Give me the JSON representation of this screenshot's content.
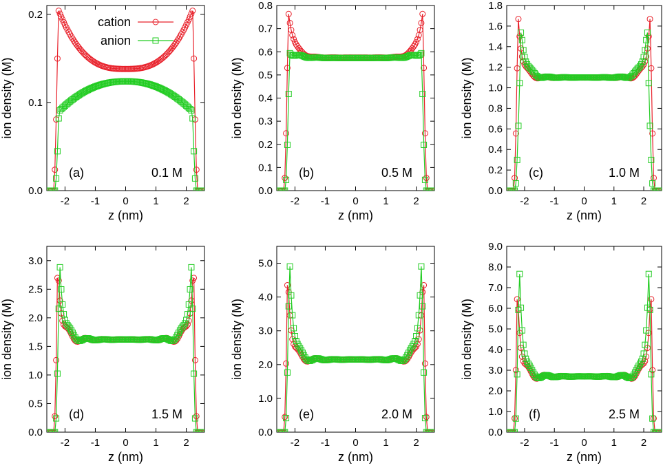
{
  "colors": {
    "cation": "#e8202a",
    "anion": "#22cc22",
    "axes": "#000000"
  },
  "legend": {
    "placement": "top-center",
    "entries": [
      {
        "name": "cation",
        "marker": "circle",
        "color": "#e8202a"
      },
      {
        "name": "anion",
        "marker": "square",
        "color": "#22cc22"
      }
    ]
  },
  "chart_data": [
    {
      "type": "line",
      "panel": "(a)",
      "annotation": "0.1 M",
      "xlabel": "z (nm)",
      "ylabel": "ion density (M)",
      "xlim": [
        -2.6,
        2.6
      ],
      "ylim": [
        0,
        0.21
      ],
      "xticks": [
        -2,
        -1,
        0,
        1,
        2
      ],
      "xtick_labels": [
        "-2",
        "-1",
        "0",
        "1",
        "2"
      ],
      "yticks": [
        0,
        0.1,
        0.2
      ],
      "ytick_labels": [
        "0.0",
        "0.1",
        "0.2"
      ],
      "series": [
        {
          "name": "cation",
          "profile": {
            "wall": 2.36,
            "bulk": 0.138,
            "peak": 0.205,
            "peak_at": 2.22,
            "decay": 0.55,
            "osc": 0
          }
        },
        {
          "name": "anion",
          "profile": {
            "wall": 2.32,
            "bulk": 0.124,
            "peak": 0.09,
            "peak_at": 2.2,
            "decay": 0.9,
            "osc": 0
          }
        }
      ]
    },
    {
      "type": "line",
      "panel": "(b)",
      "annotation": "0.5 M",
      "xlabel": "z (nm)",
      "ylabel": "ion density (M)",
      "xlim": [
        -2.6,
        2.6
      ],
      "ylim": [
        0,
        0.8
      ],
      "xticks": [
        -2,
        -1,
        0,
        1,
        2
      ],
      "xtick_labels": [
        "-2",
        "-1",
        "0",
        "1",
        "2"
      ],
      "yticks": [
        0,
        0.1,
        0.2,
        0.3,
        0.4,
        0.5,
        0.6,
        0.7,
        0.8
      ],
      "ytick_labels": [
        "0.0",
        "0.1",
        "0.2",
        "0.3",
        "0.4",
        "0.5",
        "0.6",
        "0.7",
        "0.8"
      ],
      "series": [
        {
          "name": "cation",
          "profile": {
            "wall": 2.36,
            "bulk": 0.575,
            "peak": 0.78,
            "peak_at": 2.22,
            "decay": 0.2,
            "osc": 0.01
          }
        },
        {
          "name": "anion",
          "profile": {
            "wall": 2.32,
            "bulk": 0.573,
            "peak": 0.6,
            "peak_at": 2.18,
            "decay": 0.3,
            "osc": 0.01
          }
        }
      ]
    },
    {
      "type": "line",
      "panel": "(c)",
      "annotation": "1.0 M",
      "xlabel": "z (nm)",
      "ylabel": "ion density (M)",
      "xlim": [
        -2.6,
        2.6
      ],
      "ylim": [
        0,
        1.8
      ],
      "xticks": [
        -2,
        -1,
        0,
        1,
        2
      ],
      "xtick_labels": [
        "-2",
        "-1",
        "0",
        "1",
        "2"
      ],
      "yticks": [
        0,
        0.2,
        0.4,
        0.6,
        0.8,
        1.0,
        1.2,
        1.4,
        1.6,
        1.8
      ],
      "ytick_labels": [
        "0.0",
        "0.2",
        "0.4",
        "0.6",
        "0.8",
        "1.0",
        "1.2",
        "1.4",
        "1.6",
        "1.8"
      ],
      "series": [
        {
          "name": "cation",
          "profile": {
            "wall": 2.36,
            "bulk": 1.1,
            "peak": 1.75,
            "peak_at": 2.22,
            "decay": 0.14,
            "osc": 0.06
          }
        },
        {
          "name": "anion",
          "profile": {
            "wall": 2.32,
            "bulk": 1.1,
            "peak": 1.6,
            "peak_at": 2.12,
            "decay": 0.16,
            "osc": 0.05
          }
        }
      ]
    },
    {
      "type": "line",
      "panel": "(d)",
      "annotation": "1.5 M",
      "xlabel": "z (nm)",
      "ylabel": "ion density (M)",
      "xlim": [
        -2.6,
        2.6
      ],
      "ylim": [
        0,
        3.25
      ],
      "xticks": [
        -2,
        -1,
        0,
        1,
        2
      ],
      "xtick_labels": [
        "-2",
        "-1",
        "0",
        "1",
        "2"
      ],
      "yticks": [
        0,
        0.5,
        1.0,
        1.5,
        2.0,
        2.5,
        3.0
      ],
      "ytick_labels": [
        "0.0",
        "0.5",
        "1.0",
        "1.5",
        "2.0",
        "2.5",
        "3.0"
      ],
      "series": [
        {
          "name": "cation",
          "profile": {
            "wall": 2.36,
            "bulk": 1.62,
            "peak": 3.1,
            "peak_at": 2.24,
            "decay": 0.13,
            "osc": 0.2
          }
        },
        {
          "name": "anion",
          "profile": {
            "wall": 2.32,
            "bulk": 1.62,
            "peak": 3.1,
            "peak_at": 2.18,
            "decay": 0.14,
            "osc": 0.16
          }
        }
      ]
    },
    {
      "type": "line",
      "panel": "(e)",
      "annotation": "2.0 M",
      "xlabel": "z (nm)",
      "ylabel": "ion density (M)",
      "xlim": [
        -2.6,
        2.6
      ],
      "ylim": [
        0,
        5.5
      ],
      "xticks": [
        -2,
        -1,
        0,
        1,
        2
      ],
      "xtick_labels": [
        "-2",
        "-1",
        "0",
        "1",
        "2"
      ],
      "yticks": [
        0,
        1.0,
        2.0,
        3.0,
        4.0,
        5.0
      ],
      "ytick_labels": [
        "0.0",
        "1.0",
        "2.0",
        "3.0",
        "4.0",
        "5.0"
      ],
      "series": [
        {
          "name": "cation",
          "profile": {
            "wall": 2.36,
            "bulk": 2.15,
            "peak": 5.0,
            "peak_at": 2.24,
            "decay": 0.12,
            "osc": 0.3
          }
        },
        {
          "name": "anion",
          "profile": {
            "wall": 2.32,
            "bulk": 2.15,
            "peak": 5.35,
            "peak_at": 2.18,
            "decay": 0.13,
            "osc": 0.26
          }
        }
      ]
    },
    {
      "type": "line",
      "panel": "(f)",
      "annotation": "2.5 M",
      "xlabel": "z (nm)",
      "ylabel": "ion density (M)",
      "xlim": [
        -2.6,
        2.6
      ],
      "ylim": [
        0,
        9.0
      ],
      "xticks": [
        -2,
        -1,
        0,
        1,
        2
      ],
      "xtick_labels": [
        "-2",
        "-1",
        "0",
        "1",
        "2"
      ],
      "yticks": [
        0,
        1.0,
        2.0,
        3.0,
        4.0,
        5.0,
        6.0,
        7.0,
        8.0,
        9.0
      ],
      "ytick_labels": [
        "0.0",
        "1.0",
        "2.0",
        "3.0",
        "4.0",
        "5.0",
        "6.0",
        "7.0",
        "8.0",
        "9.0"
      ],
      "series": [
        {
          "name": "cation",
          "profile": {
            "wall": 2.36,
            "bulk": 2.7,
            "peak": 7.4,
            "peak_at": 2.24,
            "decay": 0.12,
            "osc": 0.55
          }
        },
        {
          "name": "anion",
          "profile": {
            "wall": 2.32,
            "bulk": 2.7,
            "peak": 8.5,
            "peak_at": 2.18,
            "decay": 0.12,
            "osc": 0.45
          }
        }
      ]
    }
  ]
}
